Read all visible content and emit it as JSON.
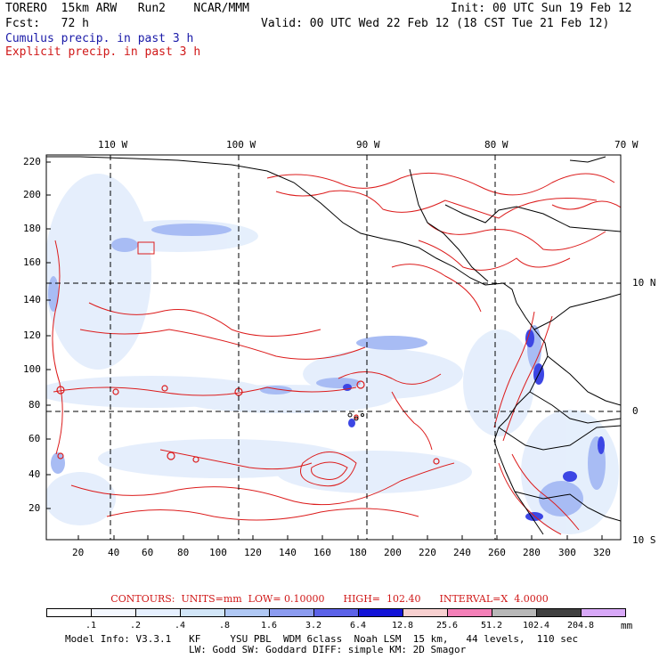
{
  "header": {
    "model": "TORERO  15km ARW   Run2    NCAR/MMM",
    "init": "Init: 00 UTC Sun 19 Feb 12",
    "forecast": "Fcst:   72 h",
    "valid": "Valid: 00 UTC Wed 22 Feb 12 (18 CST Tue 21 Feb 12)",
    "cumulus_label": "Cumulus precip. in past 3 h",
    "explicit_label": "Explicit precip. in past 3 h"
  },
  "map": {
    "top_longitudes": [
      "110 W",
      "100 W",
      "90 W",
      "80 W",
      "70 W"
    ],
    "right_latitudes": [
      "10 N",
      "0",
      "10 S"
    ],
    "y_ticks": [
      "220",
      "200",
      "180",
      "160",
      "140",
      "120",
      "100",
      "80",
      "60",
      "40",
      "20"
    ],
    "x_ticks": [
      "20",
      "40",
      "60",
      "80",
      "100",
      "120",
      "140",
      "160",
      "180",
      "200",
      "220",
      "240",
      "260",
      "280",
      "300",
      "320"
    ]
  },
  "legend": {
    "contours_text": "CONTOURS:  UNITS=mm  LOW= 0.10000      HIGH=  102.40      INTERVAL=X  4.0000",
    "units": "mm",
    "levels": [
      ".1",
      ".2",
      ".4",
      ".8",
      "1.6",
      "3.2",
      "6.4",
      "12.8",
      "25.6",
      "51.2",
      "102.4",
      "204.8"
    ],
    "colors": [
      "#ffffff",
      "#f4f8ff",
      "#e6f0ff",
      "#d2e6f8",
      "#b0c8f4",
      "#8c9cf0",
      "#5c62e8",
      "#1414d8",
      "#f8d0d0",
      "#f480b8",
      "#b8b8b8",
      "#404040",
      "#d8a8f8"
    ]
  },
  "footer": {
    "line1": "Model Info: V3.3.1   KF     YSU PBL  WDM 6class  Noah LSM  15 km,   44 levels,  110 sec",
    "line2": "LW: Godd SW: Goddard DIFF: simple KM: 2D Smagor"
  }
}
